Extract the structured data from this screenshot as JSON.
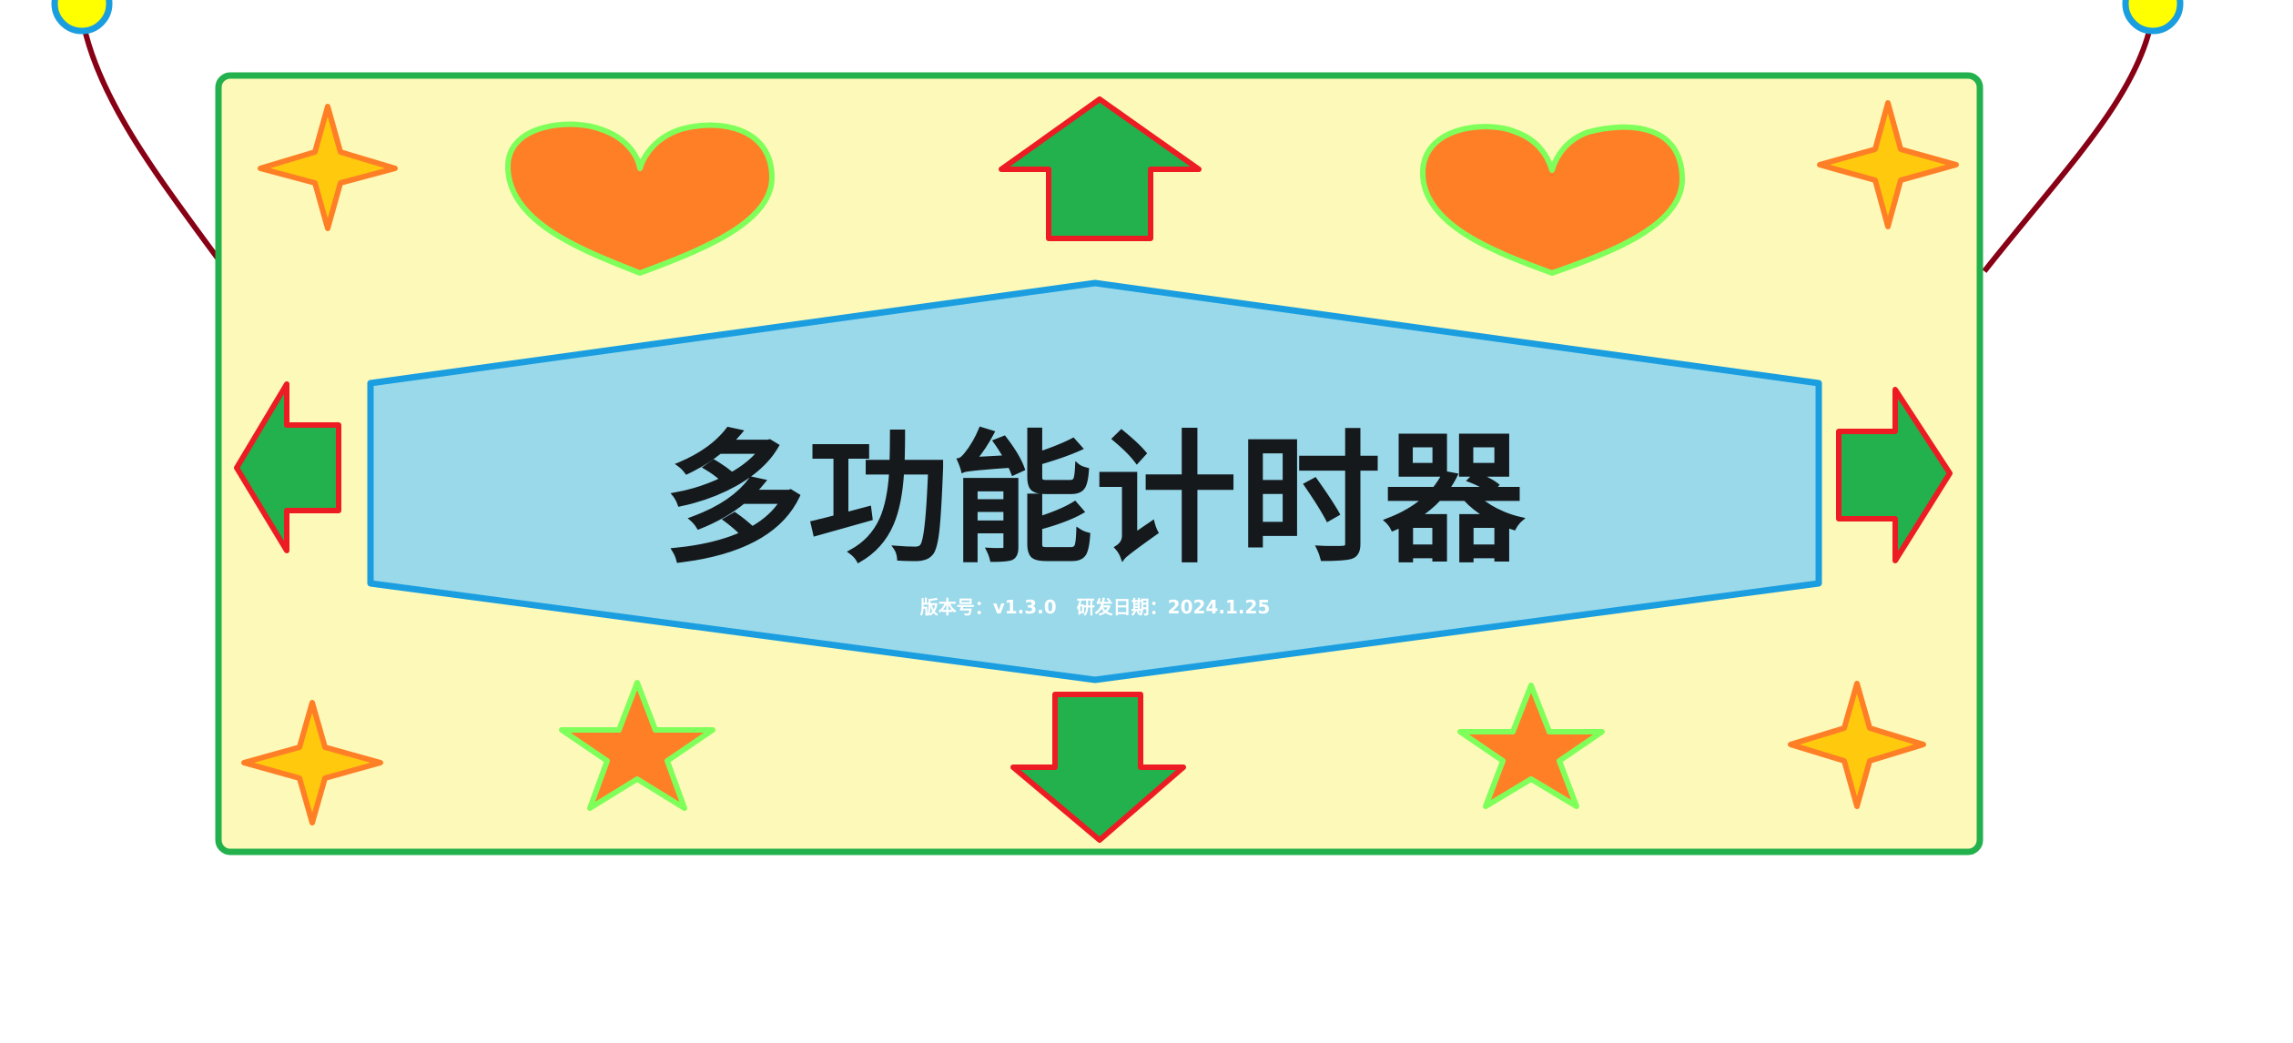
{
  "banner": {
    "title": "多功能计时器",
    "version_text": "版本号：v1.3.0",
    "date_text": "研发日期：2024.1.25"
  },
  "colors": {
    "board_fill": "#fdf9b8",
    "board_border": "#22b14c",
    "hexagon_fill": "#99d9ea",
    "hexagon_border": "#1a9ee0",
    "arrow_fill": "#22b14c",
    "arrow_border": "#ed1c24",
    "heart_fill": "#ff7f27",
    "heart_border": "#7fff5a",
    "sparkle_fill": "#ffc90e",
    "sparkle_border": "#ff7f27",
    "star_fill": "#ff7f27",
    "star_border": "#7fff5a",
    "string_color": "#880015",
    "pin_fill": "#ffff00",
    "pin_border": "#1a9ee0"
  },
  "icons": [
    "heart-icon",
    "arrow-up-icon",
    "arrow-down-icon",
    "arrow-left-icon",
    "arrow-right-icon",
    "sparkle-icon",
    "star-icon",
    "pin-icon"
  ]
}
